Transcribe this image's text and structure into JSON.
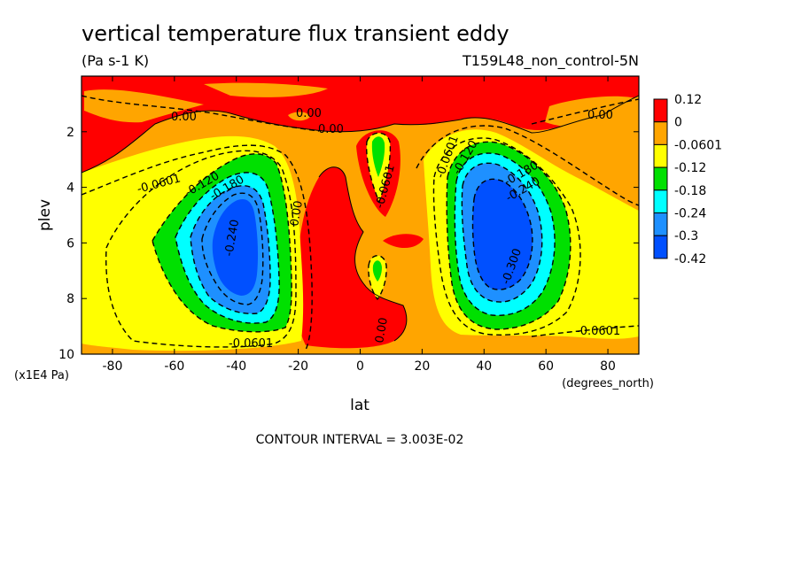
{
  "chart_data": {
    "type": "contour",
    "title": "vertical temperature flux transient eddy",
    "subtitle": "(Pa s-1 K)",
    "dataset": "T159L48_non_control-5N",
    "xlabel": "lat",
    "x_units": "(degrees_north)",
    "ylabel": "plev",
    "y_units": "(x1E4 Pa)",
    "xlim": [
      -90,
      90
    ],
    "ylim": [
      10,
      0
    ],
    "x_ticks": [
      "-80",
      "-60",
      "-40",
      "-20",
      "0",
      "20",
      "40",
      "60",
      "80"
    ],
    "y_ticks": [
      "2",
      "4",
      "6",
      "8",
      "10"
    ],
    "contour_interval_text": "CONTOUR INTERVAL = 3.003E-02",
    "colorbar": {
      "levels": [
        "0.12",
        "0",
        "-0.0601",
        "-0.12",
        "-0.18",
        "-0.24",
        "-0.3",
        "-0.42"
      ],
      "colors": [
        "#ff0000",
        "#ffa500",
        "#ffff00",
        "#00e000",
        "#00ffff",
        "#1e90ff",
        "#0050ff"
      ]
    },
    "contour_labels": [
      "0.00",
      "0.00",
      "0.00",
      "0.00",
      "0.00",
      "-0.0601",
      "-0.120",
      "-0.180",
      "-0.240",
      "-0.0601",
      "-0.0601",
      "-0.0601",
      "-0.120",
      "-0.180",
      "-0.240",
      "-0.300",
      "-0.0601",
      "0.00"
    ],
    "extrema": {
      "southern_minimum": {
        "lat": -40,
        "plev": 5.8,
        "value_range": "-0.3 to -0.42"
      },
      "northern_minimum": {
        "lat": 45,
        "plev": 6.0,
        "value_range": "-0.3 to -0.42"
      },
      "equatorial_positive": {
        "lat_range": [
          -20,
          15
        ],
        "plev_range": [
          3,
          10
        ]
      }
    }
  }
}
